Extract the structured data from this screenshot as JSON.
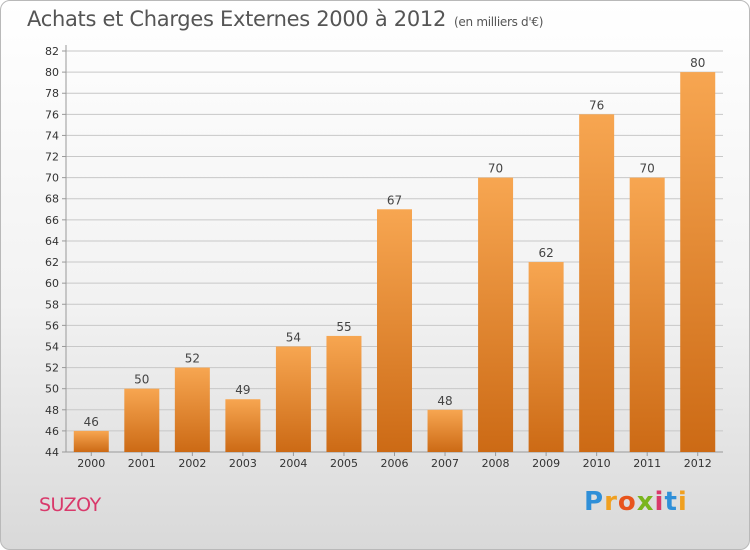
{
  "header": {
    "title": "Achats et Charges Externes 2000 à 2012",
    "subtitle": "(en milliers d'€)"
  },
  "footer": {
    "commune": "SUZOY",
    "logo": "Proxiti",
    "logo_letters": [
      "P",
      "r",
      "o",
      "x",
      "i",
      "t",
      "i"
    ],
    "logo_colors": [
      "#2f8fd8",
      "#f0a020",
      "#e8541c",
      "#7ab51d",
      "#d9396b",
      "#2f8fd8",
      "#f0a020"
    ]
  },
  "colors": {
    "bar_top": "#f7a651",
    "bar_bottom": "#cc6a15",
    "grid": "#c8c8c8",
    "axis": "#999999"
  },
  "chart_data": {
    "type": "bar",
    "title": "Achats et Charges Externes 2000 à 2012",
    "subtitle": "(en milliers d'€)",
    "categories": [
      "2000",
      "2001",
      "2002",
      "2003",
      "2004",
      "2005",
      "2006",
      "2007",
      "2008",
      "2009",
      "2010",
      "2011",
      "2012"
    ],
    "values": [
      46,
      50,
      52,
      49,
      54,
      55,
      67,
      48,
      70,
      62,
      76,
      70,
      80
    ],
    "ylim": [
      44,
      82
    ],
    "yticks": [
      44,
      46,
      48,
      50,
      52,
      54,
      56,
      58,
      60,
      62,
      64,
      66,
      68,
      70,
      72,
      74,
      76,
      78,
      80,
      82
    ],
    "grid": true,
    "data_labels": true
  }
}
